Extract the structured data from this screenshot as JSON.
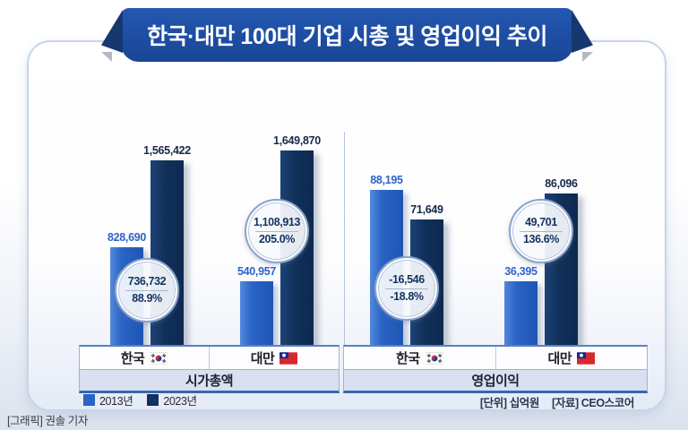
{
  "title": "한국·대만 100대 기업 시총 및 영업이익 추이",
  "legend": [
    {
      "label": "2013년",
      "color": "#2a63c4"
    },
    {
      "label": "2023년",
      "color": "#12315f"
    }
  ],
  "footer": {
    "unit": "[단위] 십억원",
    "source": "[자료] CEO스코어",
    "credit": "[그래픽] 권솔 기자"
  },
  "colors": {
    "banner": "#1d4da3",
    "bar_2013": "#2a64c5",
    "bar_2023": "#103059"
  },
  "chart_data": {
    "type": "bar",
    "title": "한국·대만 100대 기업 시총 및 영업이익 추이",
    "unit": "십억원",
    "series_names": [
      "2013년",
      "2023년"
    ],
    "legend_position": "bottom-left",
    "grid": false,
    "sections": [
      {
        "label": "시가총액",
        "groups": [
          {
            "country": "한국",
            "flag": "kr",
            "values": [
              828690,
              1565422
            ],
            "value_labels": [
              "828,690",
              "1,565,422"
            ],
            "diff_label": "736,732",
            "pct_label": "88.9%"
          },
          {
            "country": "대만",
            "flag": "tw",
            "values": [
              540957,
              1649870
            ],
            "value_labels": [
              "540,957",
              "1,649,870"
            ],
            "diff_label": "1,108,913",
            "pct_label": "205.0%"
          }
        ]
      },
      {
        "label": "영업이익",
        "groups": [
          {
            "country": "한국",
            "flag": "kr",
            "values": [
              88195,
              71649
            ],
            "value_labels": [
              "88,195",
              "71,649"
            ],
            "diff_label": "-16,546",
            "pct_label": "-18.8%"
          },
          {
            "country": "대만",
            "flag": "tw",
            "values": [
              36395,
              86096
            ],
            "value_labels": [
              "36,395",
              "86,096"
            ],
            "diff_label": "49,701",
            "pct_label": "136.6%"
          }
        ]
      }
    ]
  }
}
